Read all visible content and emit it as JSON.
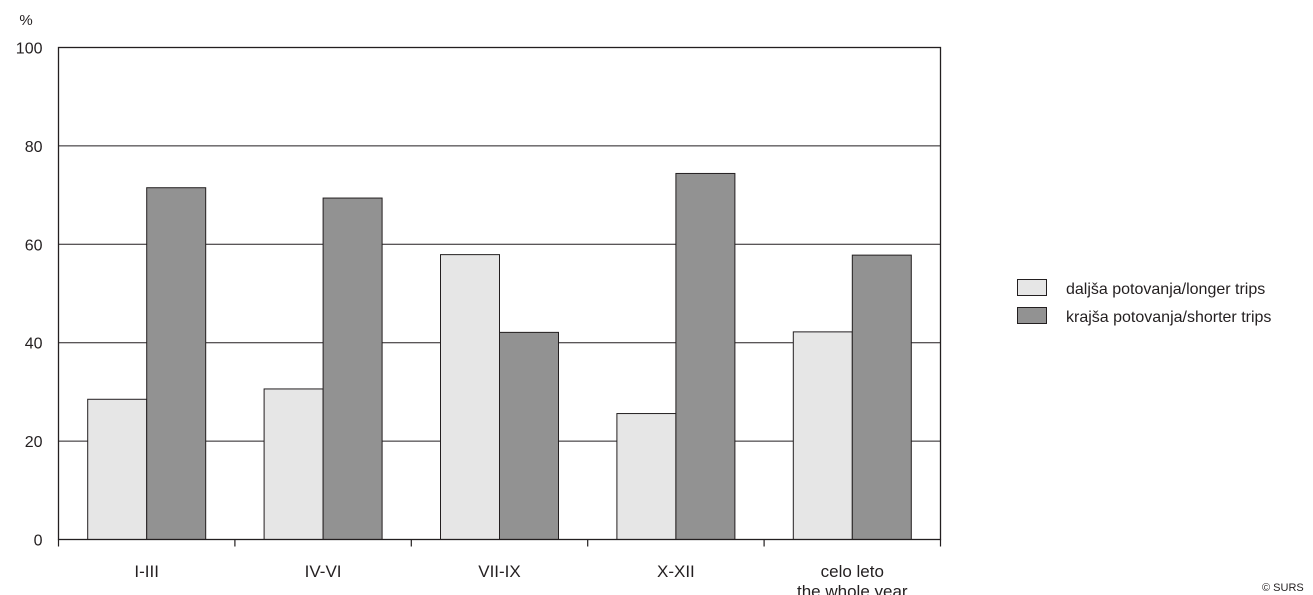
{
  "chart_data": {
    "type": "bar",
    "unit_label": "%",
    "categories": [
      [
        "I-III"
      ],
      [
        "IV-VI"
      ],
      [
        "VII-IX"
      ],
      [
        "X-XII"
      ],
      [
        "celo leto",
        "the whole year"
      ]
    ],
    "series": [
      {
        "name": "daljša potovanja/longer trips",
        "values": [
          28.5,
          30.6,
          57.9,
          25.6,
          42.2
        ],
        "color": "#e6e6e6"
      },
      {
        "name": "krajša potovanja/shorter trips",
        "values": [
          71.5,
          69.4,
          42.1,
          74.4,
          57.8
        ],
        "color": "#929292"
      }
    ],
    "ylim": [
      0,
      100
    ],
    "yticks": [
      "0",
      "20",
      "40",
      "60",
      "80",
      "100"
    ],
    "grid": true,
    "legend_position": "right",
    "copyright": "© SURS"
  }
}
